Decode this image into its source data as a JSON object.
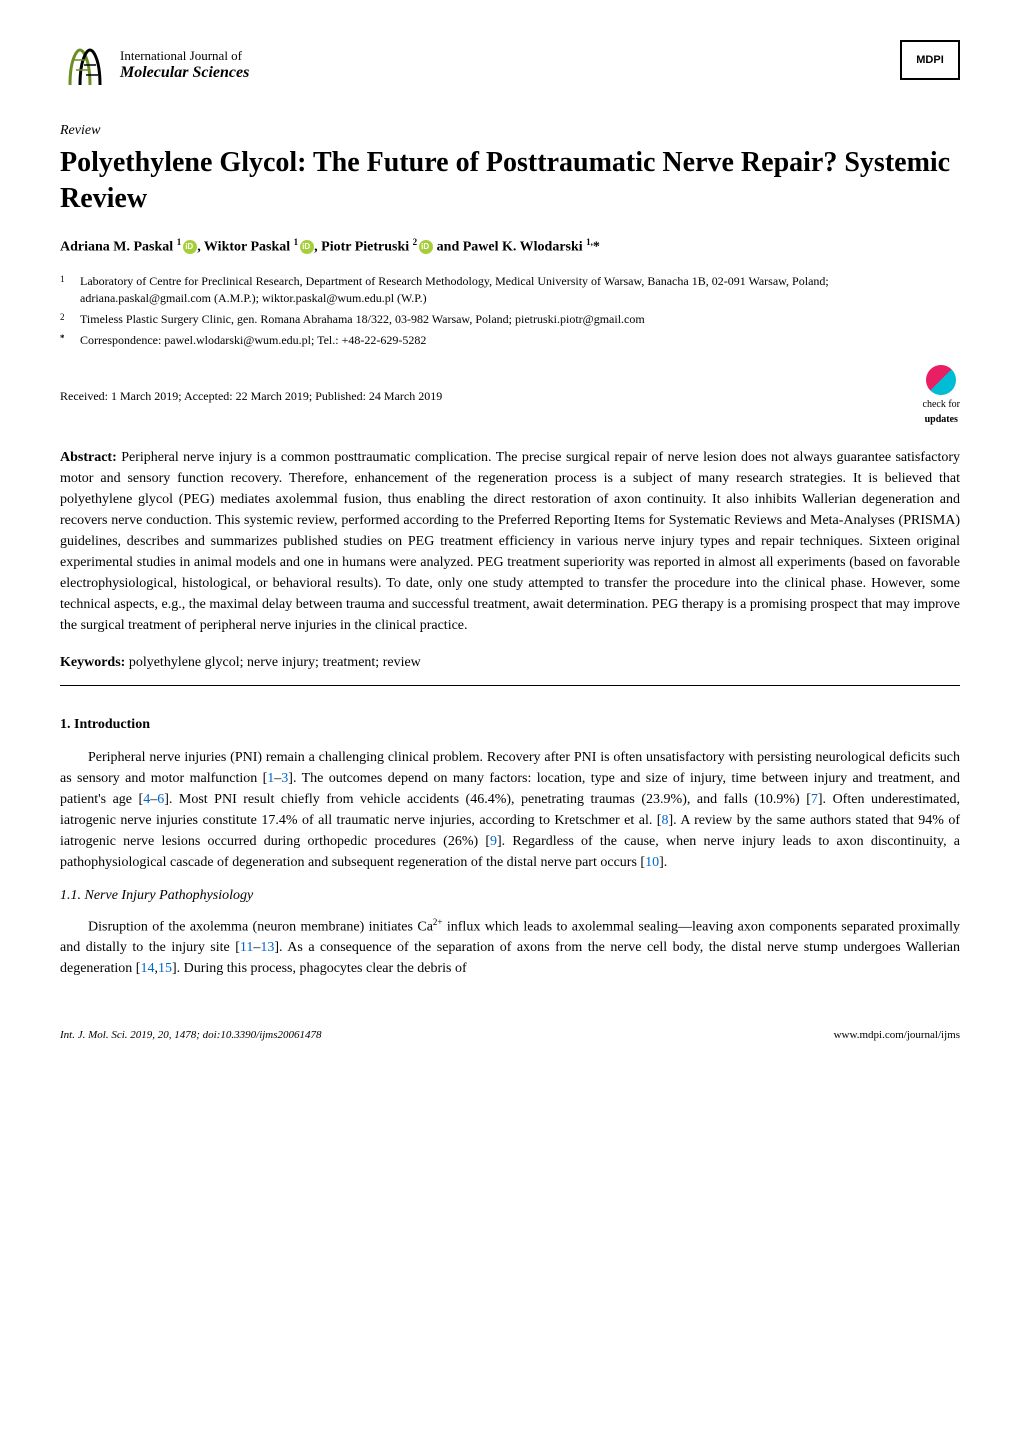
{
  "journal": {
    "title_line1": "International Journal of",
    "title_line2": "Molecular Sciences",
    "logo_colors": {
      "primary": "#6b8e23",
      "secondary": "#000000"
    }
  },
  "publisher": {
    "name": "MDPI"
  },
  "article": {
    "type": "Review",
    "title": "Polyethylene Glycol: The Future of Posttraumatic Nerve Repair? Systemic Review"
  },
  "authors": {
    "list_html": "Adriana M. Paskal <sup>1</sup><span class=\"orcid-icon\" data-name=\"orcid-icon\" data-interactable=\"false\"></span>, Wiktor Paskal <sup>1</sup><span class=\"orcid-icon\" data-name=\"orcid-icon\" data-interactable=\"false\"></span>, Piotr Pietruski <sup>2</sup><span class=\"orcid-icon\" data-name=\"orcid-icon\" data-interactable=\"false\"></span> and Pawel K. Wlodarski <sup>1,</sup>*"
  },
  "affiliations": [
    {
      "num": "1",
      "text": "Laboratory of Centre for Preclinical Research, Department of Research Methodology, Medical University of Warsaw, Banacha 1B, 02-091 Warsaw, Poland; adriana.paskal@gmail.com (A.M.P.); wiktor.paskal@wum.edu.pl (W.P.)"
    },
    {
      "num": "2",
      "text": "Timeless Plastic Surgery Clinic, gen. Romana Abrahama 18/322, 03-982 Warsaw, Poland; pietruski.piotr@gmail.com"
    },
    {
      "num": "*",
      "text": "Correspondence: pawel.wlodarski@wum.edu.pl; Tel.: +48-22-629-5282"
    }
  ],
  "dates": {
    "text": "Received: 1 March 2019; Accepted: 22 March 2019; Published: 24 March 2019"
  },
  "check_updates": {
    "line1": "check for",
    "line2": "updates"
  },
  "abstract": {
    "label": "Abstract:",
    "text": "Peripheral nerve injury is a common posttraumatic complication. The precise surgical repair of nerve lesion does not always guarantee satisfactory motor and sensory function recovery. Therefore, enhancement of the regeneration process is a subject of many research strategies. It is believed that polyethylene glycol (PEG) mediates axolemmal fusion, thus enabling the direct restoration of axon continuity. It also inhibits Wallerian degeneration and recovers nerve conduction. This systemic review, performed according to the Preferred Reporting Items for Systematic Reviews and Meta-Analyses (PRISMA) guidelines, describes and summarizes published studies on PEG treatment efficiency in various nerve injury types and repair techniques. Sixteen original experimental studies in animal models and one in humans were analyzed. PEG treatment superiority was reported in almost all experiments (based on favorable electrophysiological, histological, or behavioral results). To date, only one study attempted to transfer the procedure into the clinical phase. However, some technical aspects, e.g., the maximal delay between trauma and successful treatment, await determination. PEG therapy is a promising prospect that may improve the surgical treatment of peripheral nerve injuries in the clinical practice."
  },
  "keywords": {
    "label": "Keywords:",
    "text": "polyethylene glycol; nerve injury; treatment; review"
  },
  "sections": {
    "intro_heading": "1. Introduction",
    "intro_p1_html": "Peripheral nerve injuries (PNI) remain a challenging clinical problem. Recovery after PNI is often unsatisfactory with persisting neurological deficits such as sensory and motor malfunction [<span class=\"ref-link\">1</span>–<span class=\"ref-link\">3</span>]. The outcomes depend on many factors: location, type and size of injury, time between injury and treatment, and patient's age [<span class=\"ref-link\">4</span>–<span class=\"ref-link\">6</span>]. Most PNI result chiefly from vehicle accidents (46.4%), penetrating traumas (23.9%), and falls (10.9%) [<span class=\"ref-link\">7</span>]. Often underestimated, iatrogenic nerve injuries constitute 17.4% of all traumatic nerve injuries, according to Kretschmer et al. [<span class=\"ref-link\">8</span>]. A review by the same authors stated that 94% of iatrogenic nerve lesions occurred during orthopedic procedures (26%) [<span class=\"ref-link\">9</span>]. Regardless of the cause, when nerve injury leads to axon discontinuity, a pathophysiological cascade of degeneration and subsequent regeneration of the distal nerve part occurs [<span class=\"ref-link\">10</span>].",
    "subsec_heading": "1.1. Nerve Injury Pathophysiology",
    "subsec_p1_html": "Disruption of the axolemma (neuron membrane) initiates Ca<sup>2+</sup> influx which leads to axolemmal sealing—leaving axon components separated proximally and distally to the injury site [<span class=\"ref-link\">11</span>–<span class=\"ref-link\">13</span>]. As a consequence of the separation of axons from the nerve cell body, the distal nerve stump undergoes Wallerian degeneration [<span class=\"ref-link\">14</span>,<span class=\"ref-link\">15</span>]. During this process, phagocytes clear the debris of"
  },
  "footer": {
    "left": "Int. J. Mol. Sci. 2019, 20, 1478; doi:10.3390/ijms20061478",
    "right": "www.mdpi.com/journal/ijms"
  },
  "colors": {
    "text": "#000000",
    "background": "#ffffff",
    "ref_link": "#0066cc",
    "orcid": "#a6ce39",
    "updates_pink": "#e91e63",
    "updates_cyan": "#00bcd4"
  }
}
